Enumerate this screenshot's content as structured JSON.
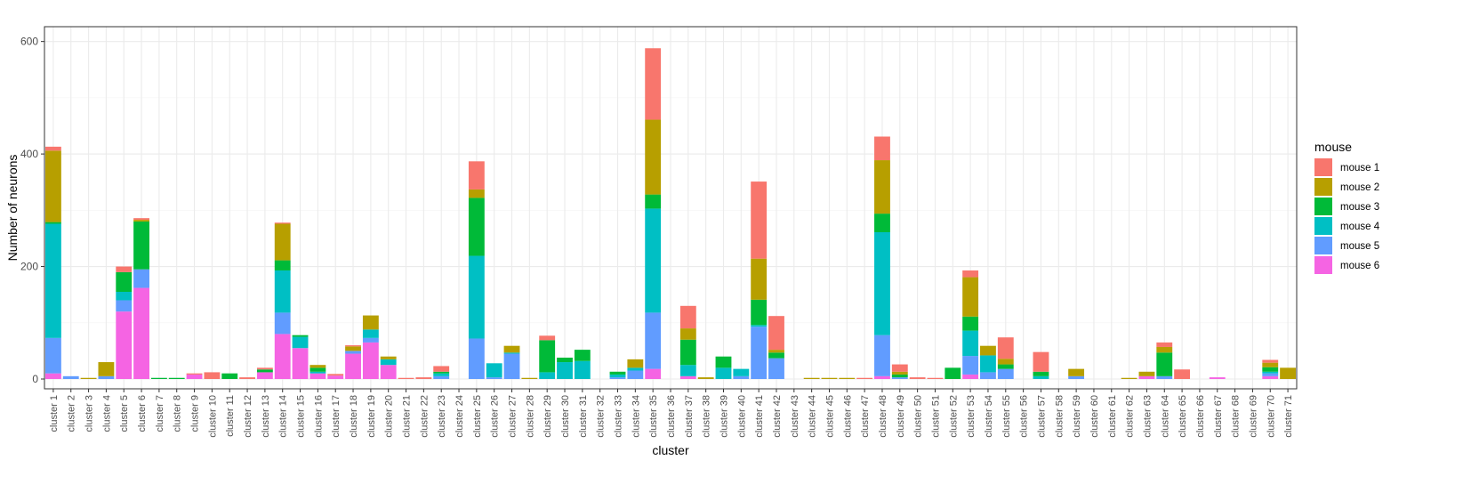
{
  "chart_data": {
    "type": "bar",
    "stacked": true,
    "xlabel": "cluster",
    "ylabel": "Number of neurons",
    "ylim": [
      0,
      620
    ],
    "yticks": [
      0,
      200,
      400,
      600
    ],
    "grid": true,
    "legend": {
      "title": "mouse",
      "position": "right"
    },
    "categories": [
      "cluster 1",
      "cluster 2",
      "cluster 3",
      "cluster 4",
      "cluster 5",
      "cluster 6",
      "cluster 7",
      "cluster 8",
      "cluster 9",
      "cluster 10",
      "cluster 11",
      "cluster 12",
      "cluster 13",
      "cluster 14",
      "cluster 15",
      "cluster 16",
      "cluster 17",
      "cluster 18",
      "cluster 19",
      "cluster 20",
      "cluster 21",
      "cluster 22",
      "cluster 23",
      "cluster 24",
      "cluster 25",
      "cluster 26",
      "cluster 27",
      "cluster 28",
      "cluster 29",
      "cluster 30",
      "cluster 31",
      "cluster 32",
      "cluster 33",
      "cluster 34",
      "cluster 35",
      "cluster 36",
      "cluster 37",
      "cluster 38",
      "cluster 39",
      "cluster 40",
      "cluster 41",
      "cluster 42",
      "cluster 43",
      "cluster 44",
      "cluster 45",
      "cluster 46",
      "cluster 47",
      "cluster 48",
      "cluster 49",
      "cluster 50",
      "cluster 51",
      "cluster 52",
      "cluster 53",
      "cluster 54",
      "cluster 55",
      "cluster 56",
      "cluster 57",
      "cluster 58",
      "cluster 59",
      "cluster 60",
      "cluster 61",
      "cluster 62",
      "cluster 63",
      "cluster 64",
      "cluster 65",
      "cluster 66",
      "cluster 67",
      "cluster 68",
      "cluster 69",
      "cluster 70",
      "cluster 71"
    ],
    "series": [
      {
        "name": "mouse 6",
        "color": "#F564E3",
        "values": [
          10,
          0,
          0,
          0,
          120,
          162,
          0,
          0,
          8,
          0,
          0,
          0,
          12,
          80,
          55,
          10,
          6,
          45,
          65,
          25,
          0,
          0,
          0,
          0,
          0,
          0,
          0,
          0,
          0,
          0,
          0,
          0,
          0,
          0,
          18,
          0,
          5,
          0,
          0,
          0,
          0,
          0,
          0,
          0,
          0,
          0,
          0,
          5,
          0,
          0,
          0,
          0,
          8,
          0,
          0,
          0,
          0,
          0,
          0,
          0,
          0,
          0,
          5,
          0,
          0,
          0,
          3,
          0,
          0,
          5,
          0
        ]
      },
      {
        "name": "mouse 5",
        "color": "#619CFF",
        "values": [
          63,
          5,
          0,
          5,
          20,
          33,
          0,
          0,
          0,
          0,
          0,
          0,
          0,
          38,
          0,
          0,
          0,
          5,
          8,
          0,
          0,
          0,
          5,
          0,
          72,
          3,
          45,
          0,
          0,
          0,
          0,
          0,
          3,
          15,
          100,
          0,
          0,
          0,
          0,
          5,
          93,
          37,
          0,
          0,
          0,
          0,
          0,
          73,
          3,
          0,
          0,
          0,
          33,
          12,
          18,
          0,
          0,
          0,
          5,
          0,
          0,
          0,
          0,
          5,
          0,
          0,
          0,
          0,
          0,
          5,
          0
        ]
      },
      {
        "name": "mouse 4",
        "color": "#00BFC4",
        "values": [
          203,
          0,
          0,
          0,
          15,
          0,
          0,
          0,
          0,
          0,
          0,
          0,
          0,
          75,
          20,
          3,
          0,
          0,
          15,
          10,
          0,
          0,
          5,
          0,
          147,
          25,
          2,
          0,
          12,
          30,
          32,
          0,
          5,
          5,
          185,
          0,
          20,
          0,
          20,
          13,
          3,
          0,
          0,
          0,
          0,
          0,
          0,
          183,
          0,
          0,
          0,
          0,
          45,
          30,
          0,
          0,
          5,
          0,
          0,
          0,
          0,
          0,
          0,
          0,
          0,
          0,
          0,
          0,
          0,
          3,
          0
        ]
      },
      {
        "name": "mouse 3",
        "color": "#00BA38",
        "values": [
          3,
          0,
          0,
          0,
          35,
          85,
          2,
          2,
          0,
          0,
          10,
          0,
          5,
          18,
          3,
          7,
          0,
          0,
          0,
          0,
          0,
          0,
          3,
          0,
          103,
          0,
          0,
          0,
          57,
          8,
          20,
          0,
          5,
          0,
          25,
          0,
          45,
          0,
          20,
          0,
          45,
          10,
          0,
          0,
          0,
          0,
          0,
          33,
          5,
          0,
          0,
          20,
          25,
          0,
          8,
          0,
          8,
          0,
          0,
          0,
          0,
          0,
          0,
          42,
          0,
          0,
          0,
          0,
          0,
          8,
          0
        ]
      },
      {
        "name": "mouse 2",
        "color": "#B79F00",
        "values": [
          127,
          0,
          2,
          25,
          0,
          3,
          0,
          0,
          0,
          0,
          0,
          0,
          0,
          65,
          0,
          5,
          0,
          8,
          25,
          5,
          0,
          0,
          0,
          0,
          15,
          0,
          12,
          2,
          0,
          0,
          0,
          0,
          0,
          15,
          133,
          0,
          20,
          3,
          0,
          0,
          73,
          5,
          0,
          2,
          2,
          2,
          0,
          95,
          5,
          0,
          0,
          0,
          70,
          17,
          10,
          0,
          0,
          0,
          13,
          0,
          0,
          2,
          8,
          10,
          0,
          0,
          0,
          0,
          0,
          8,
          20
        ]
      },
      {
        "name": "mouse 1",
        "color": "#F8766D",
        "values": [
          7,
          0,
          0,
          0,
          10,
          3,
          0,
          0,
          2,
          12,
          0,
          3,
          3,
          2,
          0,
          0,
          3,
          2,
          0,
          0,
          2,
          3,
          10,
          0,
          50,
          0,
          0,
          0,
          8,
          0,
          0,
          0,
          0,
          0,
          127,
          0,
          40,
          0,
          0,
          0,
          137,
          60,
          0,
          0,
          0,
          0,
          2,
          42,
          13,
          3,
          2,
          0,
          12,
          0,
          38,
          0,
          35,
          0,
          0,
          0,
          0,
          0,
          0,
          8,
          17,
          0,
          0,
          0,
          0,
          5,
          0
        ]
      }
    ]
  }
}
